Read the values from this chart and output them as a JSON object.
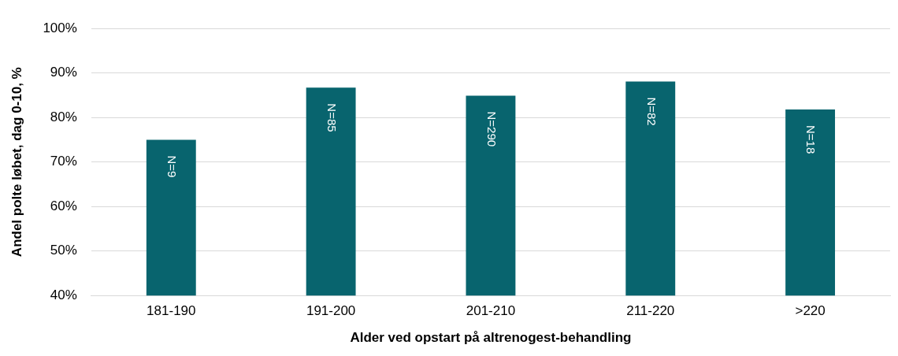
{
  "chart_data": {
    "type": "bar",
    "xlabel": "Alder ved opstart på altrenogest-behandling",
    "ylabel": "Andel polte løbet, dag 0-10, %",
    "categories": [
      "181-190",
      "191-200",
      "201-210",
      "211-220",
      ">220"
    ],
    "values": [
      75,
      86.7,
      84.9,
      88.1,
      81.8
    ],
    "color": "#08646e",
    "ylim": [
      40,
      100
    ],
    "yticks": [
      {
        "value": 40,
        "label": "40%"
      },
      {
        "value": 50,
        "label": "50%"
      },
      {
        "value": 60,
        "label": "60%"
      },
      {
        "value": 70,
        "label": "70%"
      },
      {
        "value": 80,
        "label": "80%"
      },
      {
        "value": 90,
        "label": "90%"
      },
      {
        "value": 100,
        "label": "100%"
      }
    ],
    "grid": "y",
    "legend": false,
    "annotations": [
      {
        "text": "N=9",
        "x": "181-190",
        "y": 75
      },
      {
        "text": "N=85",
        "x": "191-200",
        "y": 86.7
      },
      {
        "text": "N=290",
        "x": "201-210",
        "y": 84.9
      },
      {
        "text": "N=82",
        "x": "211-220",
        "y": 88.1
      },
      {
        "text": "N=18",
        "x": ">220",
        "y": 81.8
      }
    ]
  }
}
